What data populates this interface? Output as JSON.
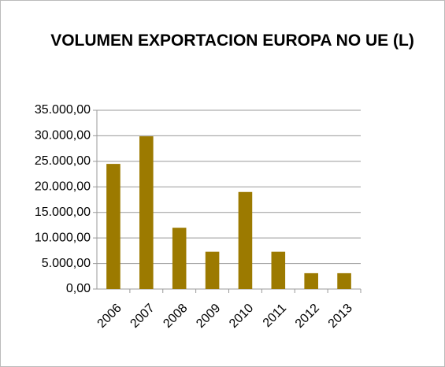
{
  "chart_data": {
    "type": "bar",
    "title": "VOLUMEN EXPORTACION EUROPA NO UE (L)",
    "categories": [
      "2006",
      "2007",
      "2008",
      "2009",
      "2010",
      "2011",
      "2012",
      "2013"
    ],
    "values": [
      24500,
      29900,
      12000,
      7300,
      19000,
      7300,
      3100,
      3100
    ],
    "color": "#9c7a00",
    "ylim": [
      0,
      35000
    ],
    "yticks": [
      {
        "value": 0,
        "label": "0,00"
      },
      {
        "value": 5000,
        "label": "5.000,00"
      },
      {
        "value": 10000,
        "label": "10.000,00"
      },
      {
        "value": 15000,
        "label": "15.000,00"
      },
      {
        "value": 20000,
        "label": "20.000,00"
      },
      {
        "value": 25000,
        "label": "25.000,00"
      },
      {
        "value": 30000,
        "label": "30.000,00"
      },
      {
        "value": 35000,
        "label": "35.000,00"
      }
    ],
    "grid": true
  }
}
